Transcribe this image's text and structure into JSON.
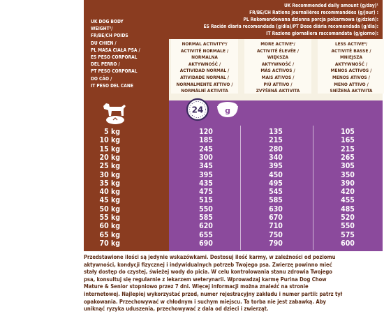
{
  "header": {
    "lines": [
      "UK Recommended daily amount (g/day)¹",
      "FR/BE/CH Rations journalières recommandées (g/jour) :",
      "PL Rekomendowana dzienna porcja pokarmowa (g/dzień):",
      "ES Ración diaria recomendada (g/día)/PT Dose diária recomendada (g/dia):",
      "IT Razione giornaliera raccomandata (g/giorno):"
    ]
  },
  "left_labels": [
    "UK DOG BODY",
    "WEIGHT²/",
    "FR/BE/CH POIDS",
    "DU CHIEN /",
    "PL MASA CIAŁA PSA /",
    "ES PESO CORPORAL",
    "DEL PERRO /",
    "PT PESO CORPORAL",
    "DO CÃO /",
    "IT PESO DEL CANE"
  ],
  "activity": [
    [
      "NORMAL ACTIVITY³/",
      "ACTIVITÉ NORMALE /",
      "NORMALNA",
      "AKTYWNOŚĆ /",
      "ACTIVIDAD NORMAL /",
      "ATIVIDADE NORMAL /",
      "NORMALMENTE ATTIVO /",
      "NORMÁLNÍ AKTIVITA"
    ],
    [
      "MORE ACTIVE⁴/",
      "ACTIVITÉ ÉLEVÉE /",
      "WIĘKSZA",
      "AKTYWNOŚĆ /",
      "MÁS ACTIVOS /",
      "MAIS ATIVOS /",
      "PIÙ ATTIVO /",
      "ZVÝŠENÁ AKTIVITA"
    ],
    [
      "LESS ACTIVE⁵/",
      "ACTIVITÉ BASSE /",
      "MNIEJSZA",
      "AKTYWNOŚĆ /",
      "MENOS ACTIVOS /",
      "MENOS ATIVOS /",
      "MENO ATTIVO /",
      "SNÍŽENÁ AKTIVITA"
    ]
  ],
  "icons": {
    "clock_label": "24",
    "bowl_label": "g"
  },
  "table": {
    "weights": [
      "5 kg",
      "10 kg",
      "15 kg",
      "20 kg",
      "25 kg",
      "30 kg",
      "35 kg",
      "40 kg",
      "45 kg",
      "50 kg",
      "55 kg",
      "60 kg",
      "65 kg",
      "70 kg"
    ],
    "normal": [
      "120",
      "185",
      "245",
      "300",
      "345",
      "395",
      "435",
      "475",
      "515",
      "550",
      "585",
      "620",
      "655",
      "690"
    ],
    "more": [
      "135",
      "215",
      "280",
      "340",
      "395",
      "450",
      "495",
      "545",
      "585",
      "630",
      "670",
      "710",
      "750",
      "790"
    ],
    "less": [
      "105",
      "165",
      "215",
      "265",
      "305",
      "350",
      "390",
      "420",
      "455",
      "485",
      "520",
      "550",
      "575",
      "600"
    ]
  },
  "footer": {
    "lines": [
      "Przedstawione ilości są jedynie wskazówkami. Dostosuj ilość karmy, w zależności od poziomu",
      "aktywności, kondycji fizycznej i indywidualnych potrzeb Twojego psa. Zwierzę powinno mieć",
      "stały dostęp do czystej, świeżej wody do picia. W celu kontrolowania stanu zdrowia Twojego",
      "psa, konsultuj się regularnie z lekarzem weterynarii. Wprowadzaj karmę Purina Dog Chow",
      "Mature & Senior stopniowo przez 7 dni. Więcej informacji można znaleźć na stronie",
      "internetowej. Najlepiej wykorzystać przed, numer rejestracyjny zakładu i numer partii: patrz tył",
      "opakowania. Przechowywać w chłodnym i suchym miejscu. Ta torba nie jest zabawką. Aby",
      "uniknąć ryzyka uduszenia, przechowywać z dala od dzieci i zwierząt."
    ]
  },
  "colors": {
    "brown": "#8a3c20",
    "purple": "#8b4a9c",
    "cream": "#f6f1e3",
    "text_brown": "#5b2b14"
  }
}
